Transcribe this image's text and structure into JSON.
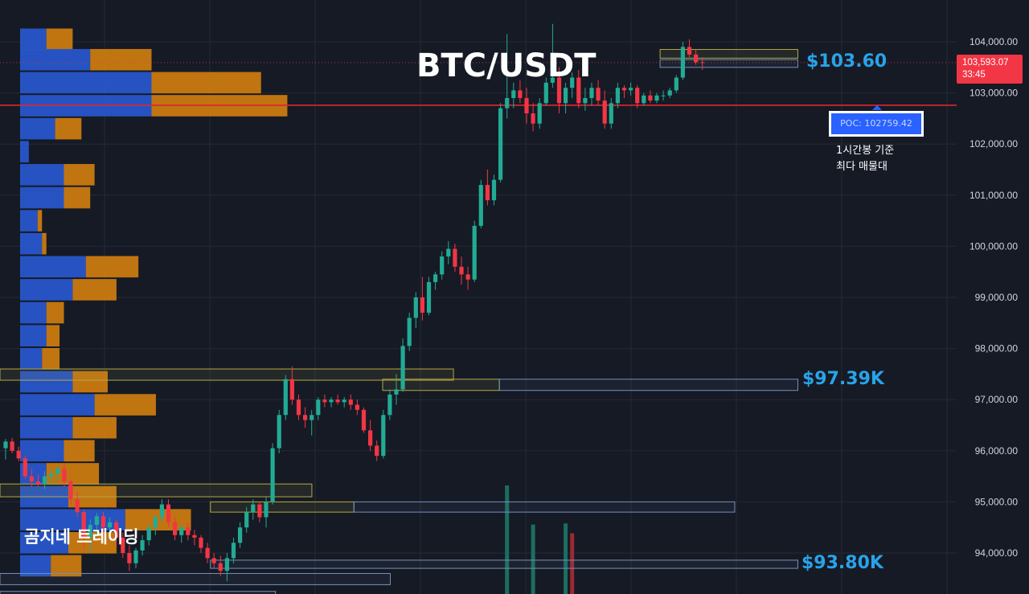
{
  "title": "BTC/USDT",
  "watermark": "곰지네 트레이딩",
  "colors": {
    "background": "#161a25",
    "grid": "#242935",
    "candle_up": "#22ab94",
    "candle_down": "#f23645",
    "volume_up": "#1b6e60",
    "volume_down": "#9b2a33",
    "profile_buy": "#2756c9",
    "profile_sell": "#c97a10",
    "poc_line": "#e0252f",
    "level_label": "#29a3e8",
    "resistance_box_border": "#b3a945",
    "support_box_border": "#7392b8",
    "axis_text": "#d1d4dc"
  },
  "current_price": {
    "value": "103,593.07",
    "countdown": "33:45"
  },
  "poc": {
    "label": "POC: 102759.42",
    "note_line1": "1시간봉 기준",
    "note_line2": "최다 매물대",
    "value": 102759.42
  },
  "levels": [
    {
      "label": "$103.60",
      "price": 103600
    },
    {
      "label": "$97.39K",
      "price": 97390
    },
    {
      "label": "$93.80K",
      "price": 93800
    }
  ],
  "chart_data": {
    "type": "candlestick",
    "symbol": "BTC/USDT",
    "timeframe": "1h",
    "y_axis": {
      "ticks": [
        "104,000.00",
        "103,000.00",
        "102,000.00",
        "101,000.00",
        "100,000.00",
        "99,000.00",
        "98,000.00",
        "97,000.00",
        "96,000.00",
        "95,000.00",
        "94,000.00"
      ],
      "range": [
        93300,
        104700
      ]
    },
    "current_price": 103593.07,
    "poc_price": 102759.42,
    "candles": [
      [
        96050,
        96230,
        95830,
        96180
      ],
      [
        96180,
        96250,
        95950,
        96000
      ],
      [
        96000,
        96080,
        95800,
        95850
      ],
      [
        95850,
        95900,
        95450,
        95500
      ],
      [
        95500,
        95650,
        95300,
        95400
      ],
      [
        95400,
        95550,
        95300,
        95350
      ],
      [
        95350,
        95600,
        95250,
        95500
      ],
      [
        95500,
        95650,
        95350,
        95550
      ],
      [
        95550,
        95700,
        95400,
        95650
      ],
      [
        95650,
        95750,
        95300,
        95400
      ],
      [
        95400,
        95450,
        94950,
        95050
      ],
      [
        95050,
        95200,
        94700,
        94800
      ],
      [
        94800,
        94850,
        94100,
        94300
      ],
      [
        94300,
        94650,
        94000,
        94550
      ],
      [
        94550,
        94780,
        94350,
        94720
      ],
      [
        94720,
        94800,
        94400,
        94500
      ],
      [
        94500,
        94700,
        94250,
        94600
      ],
      [
        94600,
        94650,
        94150,
        94300
      ],
      [
        94300,
        94400,
        93900,
        94000
      ],
      [
        94000,
        94150,
        93650,
        93800
      ],
      [
        93800,
        94100,
        93700,
        94050
      ],
      [
        94050,
        94350,
        93950,
        94250
      ],
      [
        94250,
        94550,
        94150,
        94500
      ],
      [
        94500,
        94750,
        94350,
        94700
      ],
      [
        94700,
        95050,
        94600,
        94950
      ],
      [
        94950,
        95050,
        94500,
        94600
      ],
      [
        94600,
        94700,
        94250,
        94350
      ],
      [
        94350,
        94550,
        94200,
        94500
      ],
      [
        94500,
        94600,
        94250,
        94350
      ],
      [
        94350,
        94450,
        94150,
        94300
      ],
      [
        94300,
        94350,
        94000,
        94100
      ],
      [
        94100,
        94200,
        93800,
        93900
      ],
      [
        93900,
        94000,
        93700,
        93800
      ],
      [
        93800,
        93950,
        93550,
        93650
      ],
      [
        93650,
        94000,
        93450,
        93900
      ],
      [
        93900,
        94300,
        93800,
        94200
      ],
      [
        94200,
        94600,
        94100,
        94500
      ],
      [
        94500,
        94900,
        94400,
        94800
      ],
      [
        94800,
        95050,
        94650,
        94950
      ],
      [
        94950,
        95000,
        94600,
        94700
      ],
      [
        94700,
        95100,
        94500,
        95000
      ],
      [
        95000,
        96150,
        94950,
        96050
      ],
      [
        96050,
        96800,
        95950,
        96700
      ],
      [
        96700,
        97480,
        96600,
        97400
      ],
      [
        97400,
        97650,
        96900,
        97000
      ],
      [
        97000,
        97100,
        96600,
        96700
      ],
      [
        96700,
        96850,
        96450,
        96600
      ],
      [
        96600,
        96800,
        96300,
        96700
      ],
      [
        96700,
        97050,
        96600,
        97000
      ],
      [
        97000,
        97100,
        96850,
        96950
      ],
      [
        96950,
        97050,
        96850,
        97000
      ],
      [
        97000,
        97100,
        96900,
        96950
      ],
      [
        96950,
        97050,
        96850,
        97000
      ],
      [
        97000,
        97100,
        96800,
        96900
      ],
      [
        96900,
        97000,
        96700,
        96800
      ],
      [
        96800,
        96850,
        96350,
        96400
      ],
      [
        96400,
        96600,
        96000,
        96100
      ],
      [
        96100,
        96200,
        95800,
        95900
      ],
      [
        95900,
        96800,
        95850,
        96700
      ],
      [
        96700,
        97200,
        96600,
        97100
      ],
      [
        97100,
        97500,
        96900,
        97200
      ],
      [
        97200,
        98200,
        97150,
        98050
      ],
      [
        98050,
        98700,
        97950,
        98600
      ],
      [
        98600,
        99100,
        98400,
        99000
      ],
      [
        99000,
        99400,
        98550,
        98700
      ],
      [
        98700,
        99400,
        98650,
        99300
      ],
      [
        99300,
        99500,
        99150,
        99450
      ],
      [
        99450,
        99900,
        99350,
        99800
      ],
      [
        99800,
        100100,
        99650,
        99950
      ],
      [
        99950,
        100050,
        99500,
        99600
      ],
      [
        99600,
        99800,
        99250,
        99450
      ],
      [
        99450,
        99600,
        99150,
        99350
      ],
      [
        99350,
        100500,
        99300,
        100400
      ],
      [
        100400,
        101300,
        100350,
        101200
      ],
      [
        101200,
        101500,
        100800,
        100900
      ],
      [
        100900,
        101400,
        100800,
        101300
      ],
      [
        101300,
        102800,
        101250,
        102700
      ],
      [
        102700,
        104150,
        102500,
        102900
      ],
      [
        102900,
        103200,
        102700,
        103050
      ],
      [
        103050,
        103250,
        102800,
        102900
      ],
      [
        102900,
        103100,
        102400,
        102600
      ],
      [
        102600,
        102800,
        102250,
        102400
      ],
      [
        102400,
        102900,
        102300,
        102800
      ],
      [
        102800,
        103300,
        102750,
        103200
      ],
      [
        103200,
        104350,
        103100,
        103300
      ],
      [
        103300,
        103500,
        102600,
        102800
      ],
      [
        102800,
        103200,
        102600,
        103100
      ],
      [
        103100,
        103400,
        102900,
        103300
      ],
      [
        103300,
        103450,
        102700,
        102800
      ],
      [
        102800,
        103100,
        102650,
        102900
      ],
      [
        102900,
        103200,
        102750,
        103100
      ],
      [
        103100,
        103250,
        102750,
        102850
      ],
      [
        102850,
        103050,
        102300,
        102400
      ],
      [
        102400,
        102900,
        102300,
        102800
      ],
      [
        102800,
        103200,
        102700,
        103100
      ],
      [
        103100,
        103150,
        102900,
        103050
      ],
      [
        103050,
        103200,
        102950,
        103100
      ],
      [
        103100,
        103150,
        102700,
        102800
      ],
      [
        102800,
        103000,
        102750,
        102950
      ],
      [
        102950,
        103050,
        102800,
        102850
      ],
      [
        102850,
        103000,
        102800,
        102950
      ],
      [
        102950,
        103050,
        102850,
        102950
      ],
      [
        102950,
        103100,
        102900,
        103050
      ],
      [
        103050,
        103350,
        103000,
        103300
      ],
      [
        103300,
        104000,
        103250,
        103900
      ],
      [
        103900,
        104050,
        103700,
        103750
      ],
      [
        103750,
        103850,
        103550,
        103600
      ],
      [
        103600,
        103700,
        103450,
        103593
      ]
    ],
    "volume_profile": [
      {
        "price": 104050,
        "buy": 6,
        "sell": 6
      },
      {
        "price": 103650,
        "buy": 16,
        "sell": 14
      },
      {
        "price": 103200,
        "buy": 30,
        "sell": 25
      },
      {
        "price": 102750,
        "buy": 30,
        "sell": 31
      },
      {
        "price": 102300,
        "buy": 8,
        "sell": 6
      },
      {
        "price": 101850,
        "buy": 2,
        "sell": 0
      },
      {
        "price": 101400,
        "buy": 10,
        "sell": 7
      },
      {
        "price": 100950,
        "buy": 10,
        "sell": 6
      },
      {
        "price": 100500,
        "buy": 4,
        "sell": 1
      },
      {
        "price": 100050,
        "buy": 5,
        "sell": 1
      },
      {
        "price": 99600,
        "buy": 15,
        "sell": 12
      },
      {
        "price": 99150,
        "buy": 12,
        "sell": 10
      },
      {
        "price": 98700,
        "buy": 6,
        "sell": 4
      },
      {
        "price": 98250,
        "buy": 6,
        "sell": 3
      },
      {
        "price": 97800,
        "buy": 5,
        "sell": 4
      },
      {
        "price": 97350,
        "buy": 12,
        "sell": 8
      },
      {
        "price": 96900,
        "buy": 17,
        "sell": 14
      },
      {
        "price": 96450,
        "buy": 12,
        "sell": 10
      },
      {
        "price": 96000,
        "buy": 10,
        "sell": 7
      },
      {
        "price": 95550,
        "buy": 6,
        "sell": 12
      },
      {
        "price": 95100,
        "buy": 11,
        "sell": 11
      },
      {
        "price": 94650,
        "buy": 24,
        "sell": 15
      },
      {
        "price": 94200,
        "buy": 11,
        "sell": 11
      },
      {
        "price": 93750,
        "buy": 7,
        "sell": 7
      }
    ],
    "zones": [
      {
        "type": "resistance",
        "price_high": 97600,
        "price_low": 97380,
        "x_start": 0.0,
        "x_end": 0.474
      },
      {
        "type": "resistance",
        "price_high": 97400,
        "price_low": 97180,
        "x_start": 0.4,
        "x_end": 0.522
      },
      {
        "type": "support",
        "price_high": 97400,
        "price_low": 97180,
        "x_start": 0.522,
        "x_end": 0.834
      },
      {
        "type": "resistance",
        "price_high": 95350,
        "price_low": 95100,
        "x_start": 0.0,
        "x_end": 0.326
      },
      {
        "type": "resistance",
        "price_high": 95000,
        "price_low": 94800,
        "x_start": 0.22,
        "x_end": 0.37
      },
      {
        "type": "support",
        "price_high": 95000,
        "price_low": 94800,
        "x_start": 0.37,
        "x_end": 0.768
      },
      {
        "type": "support",
        "price_high": 93860,
        "price_low": 93700,
        "x_start": 0.22,
        "x_end": 0.834
      },
      {
        "type": "support",
        "price_high": 93600,
        "price_low": 93380,
        "x_start": 0.0,
        "x_end": 0.408
      },
      {
        "type": "support",
        "price_high": 93250,
        "price_low": 93100,
        "x_start": 0.0,
        "x_end": 0.288
      },
      {
        "type": "resistance",
        "price_high": 103850,
        "price_low": 103680,
        "x_start": 0.69,
        "x_end": 0.834
      },
      {
        "type": "support",
        "price_high": 103650,
        "price_low": 103500,
        "x_start": 0.69,
        "x_end": 0.834
      }
    ],
    "volume_bars": [
      {
        "candle": 77,
        "value": 1.0,
        "dir": "up"
      },
      {
        "candle": 81,
        "value": 0.64,
        "dir": "up"
      },
      {
        "candle": 86,
        "value": 0.65,
        "dir": "up"
      },
      {
        "candle": 87,
        "value": 0.56,
        "dir": "down"
      }
    ]
  }
}
